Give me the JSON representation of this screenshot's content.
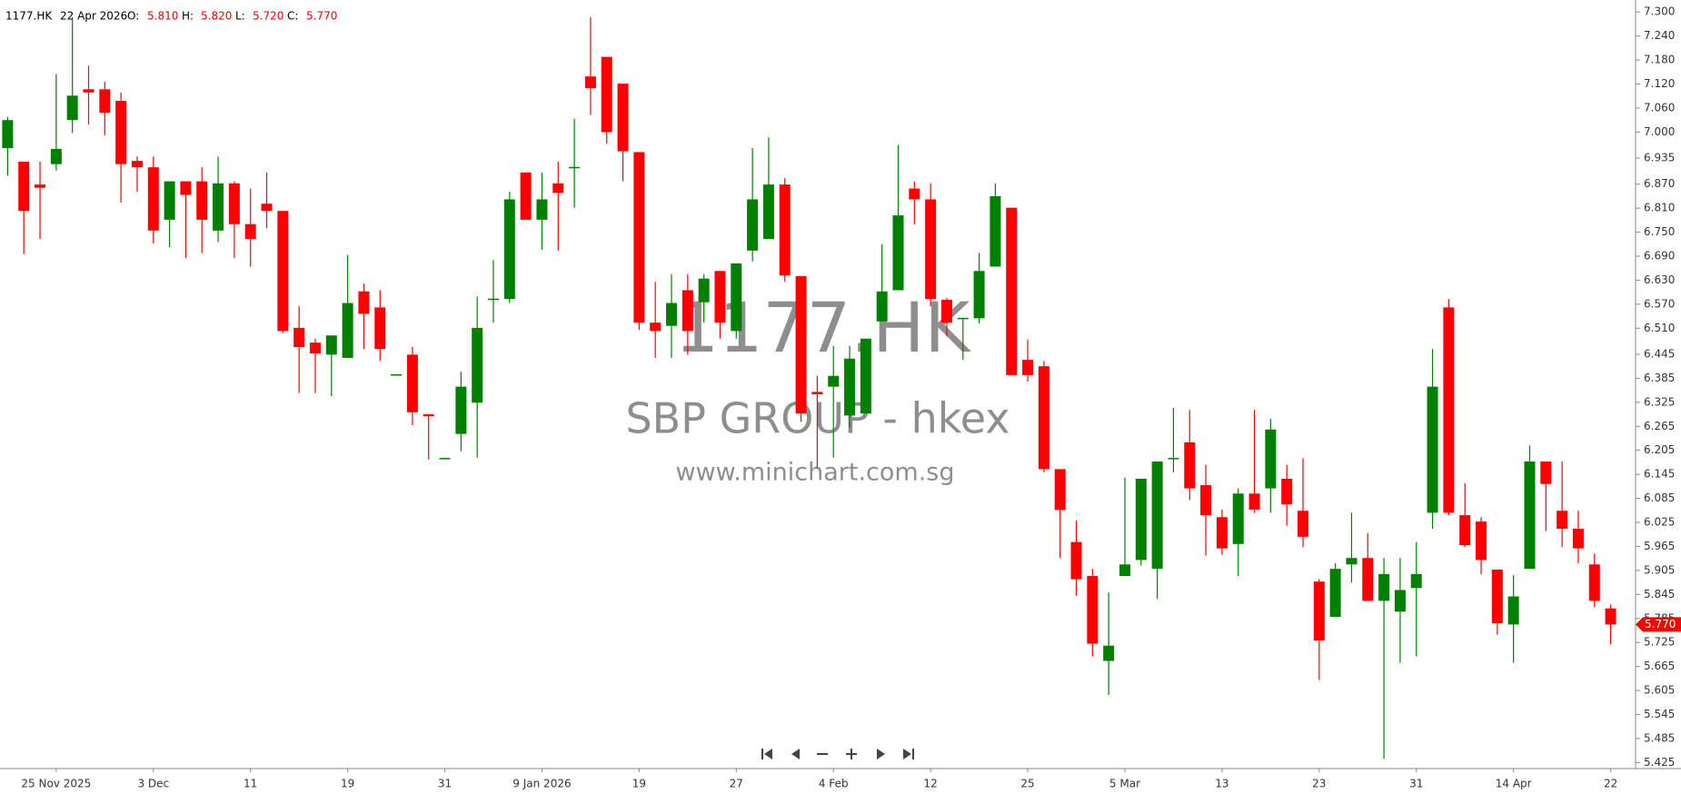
{
  "header": {
    "symbol": "1177.HK",
    "date": "22 Apr 2026",
    "o_label": "O:",
    "open": "5.810",
    "h_label": "H:",
    "high": "5.820",
    "l_label": "L:",
    "low": "5.720",
    "c_label": "C:",
    "close": "5.770"
  },
  "watermark": {
    "symbol": "1177.HK",
    "name": "SBP GROUP - hkex",
    "site": "www.minichart.com.sg"
  },
  "chart_data": {
    "type": "candlestick",
    "up_color": "#008000",
    "down_color": "#ff0000",
    "categories": [
      null,
      null,
      null,
      "25 Nov 2025",
      null,
      null,
      null,
      null,
      null,
      "3 Dec",
      null,
      null,
      null,
      null,
      null,
      "11",
      null,
      null,
      null,
      null,
      null,
      "19",
      null,
      null,
      null,
      null,
      null,
      "31",
      null,
      null,
      null,
      null,
      null,
      "9 Jan 2026",
      null,
      null,
      null,
      null,
      null,
      "19",
      null,
      null,
      null,
      null,
      null,
      "27",
      null,
      null,
      null,
      null,
      null,
      "4 Feb",
      null,
      null,
      null,
      null,
      null,
      "12",
      null,
      null,
      null,
      null,
      null,
      "25",
      null,
      null,
      null,
      null,
      null,
      "5 Mar",
      null,
      null,
      null,
      null,
      null,
      "13",
      null,
      null,
      null,
      null,
      null,
      "23",
      null,
      null,
      null,
      null,
      null,
      "31",
      null,
      null,
      null,
      null,
      null,
      "14 Apr",
      null,
      null,
      null,
      null,
      null,
      "22"
    ],
    "open": [
      6.96,
      6.926,
      6.869,
      6.92,
      7.03,
      7.107,
      7.107,
      7.078,
      6.928,
      6.912,
      6.781,
      6.877,
      6.877,
      6.754,
      6.872,
      6.77,
      6.821,
      6.803,
      6.511,
      6.474,
      6.444,
      6.436,
      6.602,
      6.562,
      6.393,
      6.444,
      6.295,
      6.185,
      6.246,
      6.324,
      6.583,
      6.583,
      6.899,
      6.781,
      6.872,
      6.912,
      7.139,
      7.188,
      7.121,
      6.95,
      6.524,
      6.516,
      6.605,
      6.575,
      6.653,
      6.503,
      6.704,
      6.733,
      6.869,
      6.64,
      6.351,
      6.364,
      6.292,
      6.297,
      6.527,
      6.605,
      6.859,
      6.832,
      6.581,
      6.535,
      6.535,
      6.664,
      6.811,
      6.431,
      6.415,
      6.158,
      5.976,
      5.891,
      5.679,
      5.891,
      5.931,
      5.909,
      6.185,
      6.225,
      6.118,
      6.038,
      5.971,
      6.097,
      6.11,
      6.134,
      6.054,
      5.877,
      5.789,
      5.92,
      5.936,
      5.829,
      5.802,
      5.861,
      6.049,
      6.562,
      6.043,
      6.027,
      5.907,
      5.77,
      5.909,
      6.177,
      6.054,
      6.009,
      5.92,
      5.81
    ],
    "high": [
      7.038,
      6.926,
      6.926,
      7.145,
      7.287,
      7.166,
      7.126,
      7.099,
      6.939,
      6.939,
      6.877,
      6.877,
      6.912,
      6.939,
      6.877,
      6.859,
      6.899,
      6.803,
      6.565,
      6.484,
      6.492,
      6.693,
      6.621,
      6.605,
      6.395,
      6.463,
      6.295,
      6.186,
      6.401,
      6.589,
      6.68,
      6.851,
      6.899,
      6.899,
      6.926,
      7.033,
      7.287,
      7.188,
      7.121,
      6.95,
      6.626,
      6.645,
      6.645,
      6.645,
      6.653,
      6.672,
      6.96,
      6.987,
      6.885,
      6.64,
      6.391,
      6.466,
      6.466,
      6.484,
      6.72,
      6.968,
      6.877,
      6.872,
      6.586,
      6.536,
      6.698,
      6.872,
      6.811,
      6.482,
      6.428,
      6.158,
      6.03,
      5.909,
      5.85,
      6.137,
      6.134,
      6.177,
      6.311,
      6.306,
      6.169,
      6.057,
      6.11,
      6.306,
      6.284,
      6.169,
      6.185,
      5.883,
      5.923,
      6.049,
      5.998,
      5.936,
      5.936,
      5.976,
      6.458,
      6.583,
      6.123,
      6.038,
      5.907,
      5.893,
      6.217,
      6.177,
      6.177,
      6.054,
      5.947,
      5.82
    ],
    "low": [
      6.891,
      6.696,
      6.733,
      6.904,
      6.998,
      7.019,
      6.992,
      6.824,
      6.851,
      6.722,
      6.712,
      6.685,
      6.698,
      6.725,
      6.685,
      6.664,
      6.76,
      6.498,
      6.348,
      6.348,
      6.34,
      6.436,
      6.458,
      6.428,
      6.393,
      6.268,
      6.182,
      6.185,
      6.203,
      6.187,
      6.524,
      6.573,
      6.781,
      6.706,
      6.704,
      6.811,
      7.043,
      6.971,
      6.877,
      6.506,
      6.436,
      6.436,
      6.444,
      6.524,
      6.484,
      6.484,
      6.677,
      6.733,
      6.626,
      6.276,
      6.161,
      6.187,
      6.262,
      6.297,
      6.527,
      6.605,
      6.77,
      6.565,
      6.49,
      6.431,
      6.522,
      6.664,
      6.393,
      6.377,
      6.15,
      5.936,
      5.842,
      5.69,
      5.594,
      5.891,
      5.917,
      5.834,
      6.15,
      6.081,
      5.942,
      5.944,
      5.891,
      6.049,
      6.049,
      6.017,
      5.963,
      5.631,
      5.789,
      5.875,
      5.829,
      5.434,
      5.674,
      5.69,
      6.009,
      6.043,
      5.963,
      5.896,
      5.744,
      5.674,
      5.909,
      6.003,
      5.963,
      5.923,
      5.813,
      5.72
    ],
    "close": [
      7.03,
      6.803,
      6.861,
      6.958,
      7.091,
      7.099,
      7.048,
      6.92,
      6.912,
      6.754,
      6.877,
      6.843,
      6.781,
      6.872,
      6.77,
      6.733,
      6.803,
      6.503,
      6.463,
      6.447,
      6.492,
      6.573,
      6.546,
      6.458,
      6.395,
      6.3,
      6.29,
      6.186,
      6.364,
      6.511,
      6.584,
      6.832,
      6.781,
      6.832,
      6.848,
      6.913,
      7.11,
      7.0,
      6.952,
      6.524,
      6.503,
      6.573,
      6.503,
      6.634,
      6.524,
      6.672,
      6.832,
      6.869,
      6.642,
      6.297,
      6.345,
      6.391,
      6.434,
      6.484,
      6.602,
      6.792,
      6.832,
      6.583,
      6.524,
      6.536,
      6.653,
      6.84,
      6.393,
      6.393,
      6.158,
      6.056,
      5.883,
      5.722,
      5.717,
      5.92,
      6.134,
      6.177,
      6.186,
      6.11,
      6.043,
      5.96,
      6.097,
      6.057,
      6.257,
      6.07,
      5.989,
      5.73,
      5.909,
      5.936,
      5.829,
      5.896,
      5.856,
      5.896,
      6.364,
      6.049,
      5.968,
      5.931,
      5.773,
      5.84,
      6.177,
      6.121,
      6.009,
      5.96,
      5.829,
      5.77
    ],
    "last_price": {
      "value": 5.77,
      "label": "5.770"
    },
    "ylim": [
      5.41,
      7.33
    ],
    "yticks": [
      {
        "value": 7.3,
        "label": "7.300"
      },
      {
        "value": 7.24,
        "label": "7.240"
      },
      {
        "value": 7.18,
        "label": "7.180"
      },
      {
        "value": 7.12,
        "label": "7.120"
      },
      {
        "value": 7.06,
        "label": "7.060"
      },
      {
        "value": 7.0,
        "label": "7.000"
      },
      {
        "value": 6.935,
        "label": "6.935"
      },
      {
        "value": 6.87,
        "label": "6.870"
      },
      {
        "value": 6.81,
        "label": "6.810"
      },
      {
        "value": 6.75,
        "label": "6.750"
      },
      {
        "value": 6.69,
        "label": "6.690"
      },
      {
        "value": 6.63,
        "label": "6.630"
      },
      {
        "value": 6.57,
        "label": "6.570"
      },
      {
        "value": 6.51,
        "label": "6.510"
      },
      {
        "value": 6.445,
        "label": "6.445"
      },
      {
        "value": 6.385,
        "label": "6.385"
      },
      {
        "value": 6.325,
        "label": "6.325"
      },
      {
        "value": 6.265,
        "label": "6.265"
      },
      {
        "value": 6.205,
        "label": "6.205"
      },
      {
        "value": 6.145,
        "label": "6.145"
      },
      {
        "value": 6.085,
        "label": "6.085"
      },
      {
        "value": 6.025,
        "label": "6.025"
      },
      {
        "value": 5.965,
        "label": "5.965"
      },
      {
        "value": 5.905,
        "label": "5.905"
      },
      {
        "value": 5.845,
        "label": "5.845"
      },
      {
        "value": 5.785,
        "label": "5.785"
      },
      {
        "value": 5.725,
        "label": "5.725"
      },
      {
        "value": 5.665,
        "label": "5.665"
      },
      {
        "value": 5.605,
        "label": "5.605"
      },
      {
        "value": 5.545,
        "label": "5.545"
      },
      {
        "value": 5.485,
        "label": "5.485"
      },
      {
        "value": 5.425,
        "label": "5.425"
      }
    ],
    "grid": false
  }
}
